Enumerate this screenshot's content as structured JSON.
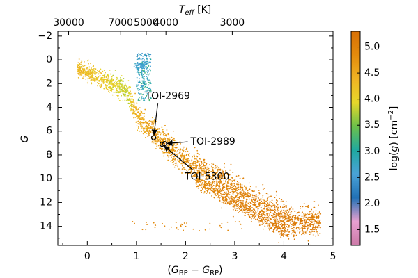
{
  "chart_data": {
    "type": "scatter",
    "title": "",
    "xlabel": "(G_BP − G_RP)",
    "xlabel_parts": {
      "open": "(",
      "g1": "G",
      "sub1": "BP",
      "minus": " − ",
      "g2": "G",
      "sub2": "RP",
      "close": ")"
    },
    "ylabel": "G",
    "xlim": [
      -0.6,
      5.0
    ],
    "ylim": [
      15.6,
      -2.4
    ],
    "y_inverted": true,
    "x_ticks": [
      0,
      1,
      2,
      3,
      4,
      5
    ],
    "x_tick_labels": [
      "0",
      "1",
      "2",
      "3",
      "4",
      "5"
    ],
    "y_ticks": [
      -2,
      0,
      2,
      4,
      6,
      8,
      10,
      12,
      14
    ],
    "y_tick_labels": [
      "−2",
      "0",
      "2",
      "4",
      "6",
      "8",
      "10",
      "12",
      "14"
    ],
    "top_axis": {
      "label_parts": {
        "T": "T",
        "sub": "eff",
        "unit": " [K]"
      },
      "ticks": [
        {
          "x": -0.38,
          "label": "30000"
        },
        {
          "x": 0.68,
          "label": "7000"
        },
        {
          "x": 1.2,
          "label": "5000"
        },
        {
          "x": 1.6,
          "label": "4000"
        },
        {
          "x": 2.95,
          "label": "3000"
        }
      ]
    },
    "colorbar": {
      "label": "log(g) [cm⁻²]",
      "label_parts": {
        "pre": "log(",
        "g": "g",
        "post": ") [cm",
        "sup": "−2",
        "close": "]"
      },
      "range": [
        1.2,
        5.3
      ],
      "ticks": [
        1.5,
        2.0,
        2.5,
        3.0,
        3.5,
        4.0,
        4.5,
        5.0
      ],
      "tick_labels": [
        "1.5",
        "2.0",
        "2.5",
        "3.0",
        "3.5",
        "4.0",
        "4.5",
        "5.0"
      ],
      "colormap": [
        "#cc79a7",
        "#e8a0d0",
        "#2171b5",
        "#4aa3d8",
        "#1fa9a0",
        "#6cc04a",
        "#e6d82a",
        "#f0b323",
        "#e38b0c",
        "#d87005"
      ]
    },
    "stars": [
      {
        "name": "TOI-2969",
        "bp_rp": 1.35,
        "G": 6.55
      },
      {
        "name": "TOI-2989",
        "bp_rp": 1.57,
        "G": 7.05
      },
      {
        "name": "TOI-5300",
        "bp_rp": 1.52,
        "G": 7.1
      }
    ],
    "annotations": [
      {
        "text": "TOI-2969",
        "text_x": 1.18,
        "text_y": 3.05,
        "target": "TOI-2969"
      },
      {
        "text": "TOI-2989",
        "text_x": 2.1,
        "text_y": 6.9,
        "target": "TOI-2989"
      },
      {
        "text": "TOI-5300",
        "text_x": 1.98,
        "text_y": 9.85,
        "target": "TOI-5300"
      }
    ],
    "background_distribution": {
      "description_segments": [
        {
          "bp_rp": -0.15,
          "G_center": 0.8,
          "logg": 4.3
        },
        {
          "bp_rp": 0.2,
          "G_center": 1.4,
          "logg": 4.2
        },
        {
          "bp_rp": 0.5,
          "G_center": 2.0,
          "logg": 4.0
        },
        {
          "bp_rp": 0.8,
          "G_center": 2.6,
          "logg": 3.8
        },
        {
          "bp_rp": 1.0,
          "G_center": 4.6,
          "logg": 4.4
        },
        {
          "bp_rp": 1.3,
          "G_center": 6.0,
          "logg": 4.6
        },
        {
          "bp_rp": 1.7,
          "G_center": 7.5,
          "logg": 4.7
        },
        {
          "bp_rp": 2.2,
          "G_center": 9.0,
          "logg": 4.8
        },
        {
          "bp_rp": 2.8,
          "G_center": 10.5,
          "logg": 4.95
        },
        {
          "bp_rp": 3.5,
          "G_center": 12.2,
          "logg": 5.05
        },
        {
          "bp_rp": 4.2,
          "G_center": 13.6,
          "logg": 5.1
        }
      ],
      "giant_branch": {
        "bp_rp_range": [
          1.0,
          1.3
        ],
        "G_range": [
          -0.6,
          3.5
        ],
        "logg": 2.6
      }
    }
  }
}
